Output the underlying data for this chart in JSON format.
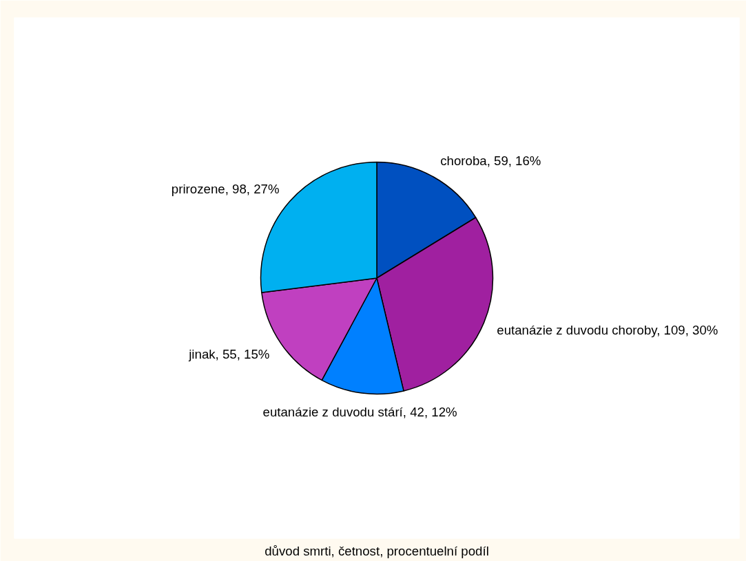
{
  "chart_data": {
    "type": "pie",
    "categories": [
      "choroba",
      "eutanázie z duvodu choroby",
      "eutanázie z duvodu stárí",
      "jinak",
      "prirozene"
    ],
    "values": [
      59,
      109,
      42,
      55,
      98
    ],
    "value_labels": [
      "59, 16%",
      "109, 30%",
      "42, 12%",
      "55, 15%",
      "98, 27%"
    ],
    "colors": [
      "#0050c0",
      "#a020a0",
      "#0080ff",
      "#c040c0",
      "#00b0f0"
    ],
    "annotations": [
      "důvod smrti, četnost, procentuelní podíl"
    ]
  }
}
